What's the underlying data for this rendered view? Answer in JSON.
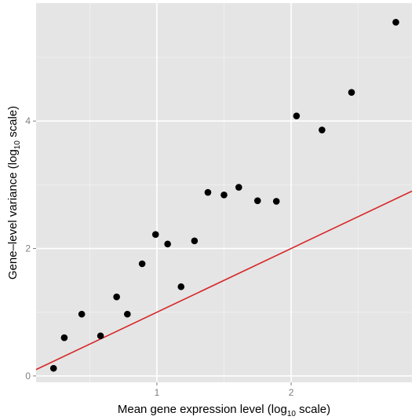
{
  "chart_data": {
    "type": "scatter",
    "title": "",
    "xlabel": {
      "before": "Mean gene expression level (log",
      "sub": "10",
      "after": " scale)"
    },
    "ylabel": {
      "before": "Gene–level variance (log",
      "sub": "10",
      "after": " scale)"
    },
    "xlim": [
      0.1,
      2.9
    ],
    "ylim": [
      -0.1,
      5.85
    ],
    "x_ticks": [
      1,
      2
    ],
    "x_tick_labels": [
      "1",
      "2"
    ],
    "y_ticks": [
      0,
      2,
      4
    ],
    "y_tick_labels": [
      "0",
      "2",
      "4"
    ],
    "grid": true,
    "series": [
      {
        "type": "scatter",
        "color": "#000000",
        "points": [
          {
            "x": 0.23,
            "y": 0.12
          },
          {
            "x": 0.31,
            "y": 0.6
          },
          {
            "x": 0.44,
            "y": 0.97
          },
          {
            "x": 0.58,
            "y": 0.63
          },
          {
            "x": 0.7,
            "y": 1.24
          },
          {
            "x": 0.78,
            "y": 0.97
          },
          {
            "x": 0.89,
            "y": 1.76
          },
          {
            "x": 0.99,
            "y": 2.22
          },
          {
            "x": 1.08,
            "y": 2.07
          },
          {
            "x": 1.18,
            "y": 1.4
          },
          {
            "x": 1.28,
            "y": 2.12
          },
          {
            "x": 1.38,
            "y": 2.88
          },
          {
            "x": 1.5,
            "y": 2.84
          },
          {
            "x": 1.61,
            "y": 2.96
          },
          {
            "x": 1.75,
            "y": 2.75
          },
          {
            "x": 1.89,
            "y": 2.74
          },
          {
            "x": 2.04,
            "y": 4.08
          },
          {
            "x": 2.23,
            "y": 3.86
          },
          {
            "x": 2.45,
            "y": 4.45
          },
          {
            "x": 2.78,
            "y": 5.55
          }
        ]
      },
      {
        "type": "line",
        "color": "#d62728",
        "x": [
          0.1,
          2.9
        ],
        "y": [
          0.1,
          2.9
        ]
      }
    ],
    "colors": {
      "panel_background": "#e5e5e5",
      "grid_major": "#ffffff",
      "grid_minor": "#f2f2f2",
      "tick_label": "#7f7f7f",
      "line": "#d62728",
      "points": "#000000"
    }
  }
}
